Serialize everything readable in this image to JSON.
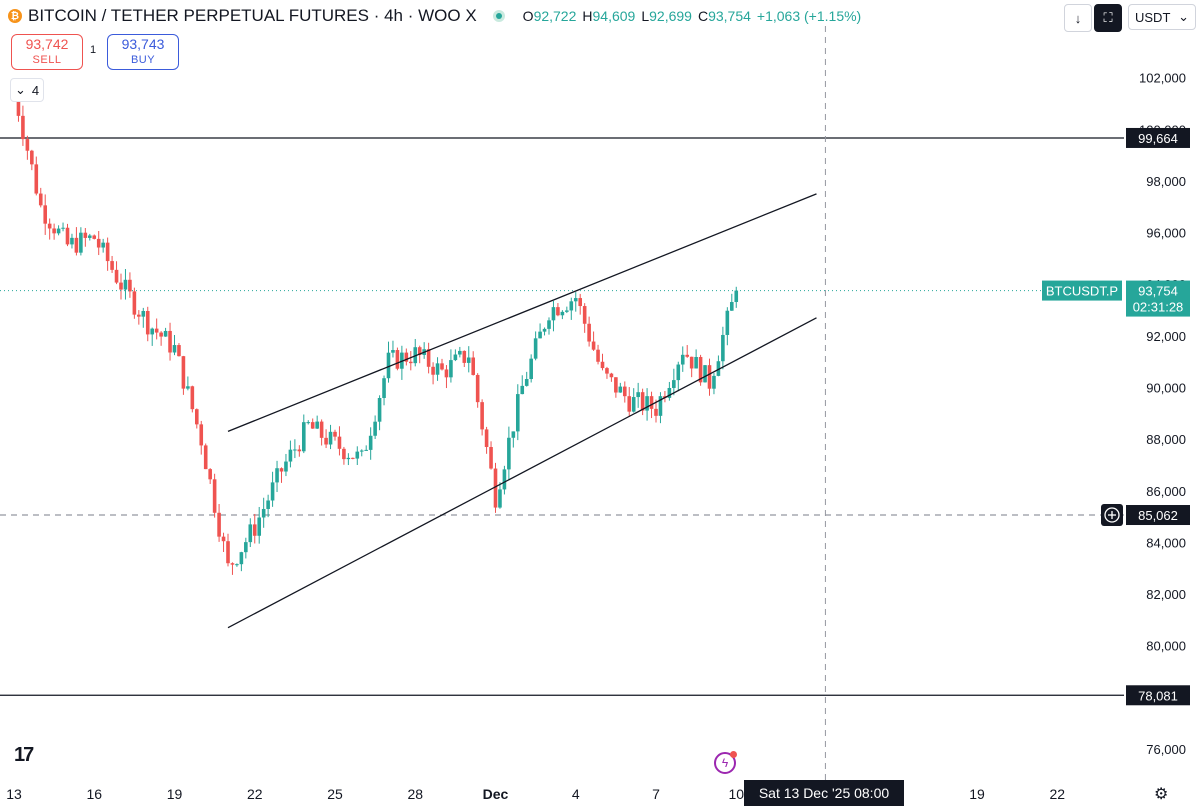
{
  "header": {
    "title": "BITCOIN / TETHER PERPETUAL FUTURES · 4h · WOO X",
    "logo_glyph": "₿",
    "ohlc": [
      {
        "key": "O",
        "value": "92,722"
      },
      {
        "key": "H",
        "value": "94,609"
      },
      {
        "key": "L",
        "value": "92,699"
      },
      {
        "key": "C",
        "value": "93,754"
      }
    ],
    "change": "+1,063 (+1.15%)"
  },
  "trade": {
    "sell_price": "93,742",
    "sell_label": "SELL",
    "spread": "1",
    "buy_price": "93,743",
    "buy_label": "BUY"
  },
  "indicators_collapse": {
    "icon": "chevron-down-icon",
    "count": "4"
  },
  "toolbar": {
    "download_icon": "↓",
    "fullscreen_icon": "⛶",
    "currency": "USDT",
    "currency_chevron": "⌄"
  },
  "footer": {
    "tv_logo": "17",
    "cursor_time": "Sat 13 Dec '25   08:00",
    "settings_icon": "⚙",
    "bolt_icon": "ϟ"
  },
  "colors": {
    "up": "#26a69a",
    "down": "#ef5350",
    "axis_text": "#131722",
    "badge_bg": "#131722"
  },
  "chart_data": {
    "type": "candlestick",
    "timeframe": "4h",
    "ylim": [
      74800,
      104000
    ],
    "y_ticks": [
      102000,
      100000,
      98000,
      96000,
      94000,
      92000,
      90000,
      88000,
      86000,
      84000,
      82000,
      80000,
      78000,
      76000
    ],
    "y_tick_labels": [
      "102,000",
      "100,000",
      "98,000",
      "96,000",
      "94,000",
      "92,000",
      "90,000",
      "88,000",
      "86,000",
      "84,000",
      "82,000",
      "80,000",
      "78,000",
      "76,000"
    ],
    "x_ticks": [
      {
        "label": "13",
        "date": "2025-11-13"
      },
      {
        "label": "16",
        "date": "2025-11-16"
      },
      {
        "label": "19",
        "date": "2025-11-19"
      },
      {
        "label": "22",
        "date": "2025-11-22"
      },
      {
        "label": "25",
        "date": "2025-11-25"
      },
      {
        "label": "28",
        "date": "2025-11-28"
      },
      {
        "label": "Dec",
        "date": "2025-12-01"
      },
      {
        "label": "4",
        "date": "2025-12-04"
      },
      {
        "label": "7",
        "date": "2025-12-07"
      },
      {
        "label": "10",
        "date": "2025-12-10"
      },
      {
        "label": "19",
        "date": "2025-12-19"
      },
      {
        "label": "22",
        "date": "2025-12-22"
      }
    ],
    "close_path": [
      {
        "date": "2025-11-13",
        "close": 101500
      },
      {
        "date": "2025-11-14",
        "close": 97000
      },
      {
        "date": "2025-11-15",
        "close": 95500
      },
      {
        "date": "2025-11-16",
        "close": 95800
      },
      {
        "date": "2025-11-17",
        "close": 94000
      },
      {
        "date": "2025-11-18",
        "close": 92500
      },
      {
        "date": "2025-11-19",
        "close": 91500
      },
      {
        "date": "2025-11-20",
        "close": 88000
      },
      {
        "date": "2025-11-21",
        "close": 83000
      },
      {
        "date": "2025-11-22",
        "close": 84600
      },
      {
        "date": "2025-11-23",
        "close": 86800
      },
      {
        "date": "2025-11-24",
        "close": 88500
      },
      {
        "date": "2025-11-25",
        "close": 87800
      },
      {
        "date": "2025-11-26",
        "close": 87200
      },
      {
        "date": "2025-11-27",
        "close": 91000
      },
      {
        "date": "2025-11-28",
        "close": 91300
      },
      {
        "date": "2025-11-29",
        "close": 90600
      },
      {
        "date": "2025-11-30",
        "close": 91300
      },
      {
        "date": "2025-12-01",
        "close": 85800
      },
      {
        "date": "2025-12-02",
        "close": 90000
      },
      {
        "date": "2025-12-03",
        "close": 93000
      },
      {
        "date": "2025-12-04",
        "close": 93500
      },
      {
        "date": "2025-12-05",
        "close": 90500
      },
      {
        "date": "2025-12-06",
        "close": 89500
      },
      {
        "date": "2025-12-07",
        "close": 89200
      },
      {
        "date": "2025-12-08",
        "close": 91500
      },
      {
        "date": "2025-12-09",
        "close": 90200
      },
      {
        "date": "2025-12-10",
        "close": 93754
      }
    ],
    "horizontal_lines": [
      {
        "price": 99664,
        "label": "99,664",
        "style": "solid"
      },
      {
        "price": 85062,
        "label": "85,062",
        "style": "dashed"
      },
      {
        "price": 78081,
        "label": "78,081",
        "style": "solid"
      }
    ],
    "last_price": {
      "symbol": "BTCUSDT.P",
      "price": "93,754",
      "countdown": "02:31:28",
      "value": 93754
    },
    "trendlines": [
      {
        "name": "channel-upper",
        "from": {
          "date": "2025-11-21",
          "price": 88300
        },
        "to": {
          "date": "2025-12-13",
          "price": 97500
        }
      },
      {
        "name": "channel-lower",
        "from": {
          "date": "2025-11-21",
          "price": 80700
        },
        "to": {
          "date": "2025-12-13",
          "price": 92700
        }
      }
    ],
    "cursor": {
      "date": "2025-12-13 08:00",
      "price": 85062
    }
  }
}
